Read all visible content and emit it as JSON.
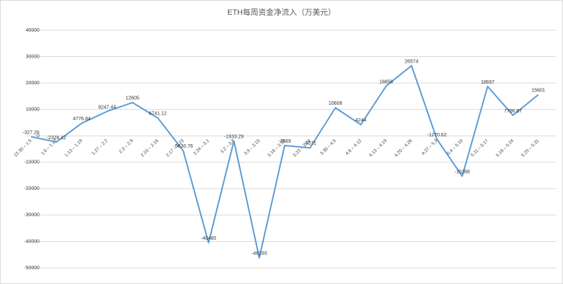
{
  "chart_data": {
    "type": "line",
    "title": "ETH每周资金净流入（万美元）",
    "categories": [
      "12.30 – 1.5",
      "1.6 – 1.12",
      "1.13 – 1.19",
      "1.27 – 2.2",
      "2.3 – 2.9",
      "2.10 – 2.16",
      "2.17 – 2.23",
      "2.24 – 3.1",
      "3.2 – 3.8",
      "3.9 – 3.15",
      "3.16 – 3.22",
      "3.23 – 3.29",
      "3.30 – 4.5",
      "4.6 – 4.12",
      "4.13 – 4.19",
      "4.20 – 4.26",
      "4.27 – 5.3",
      "5.4 – 5.10",
      "5.11 – 5.17",
      "5.18 – 5.24",
      "5.25 – 5.31"
    ],
    "series": [
      {
        "name": "ETH",
        "color": "#5b9bd5",
        "values": [
          -327.26,
          -2328.12,
          4776.84,
          9247.44,
          12605,
          6741.12,
          -5630.76,
          -40480,
          -1933.29,
          -46200,
          -3669,
          -4571,
          10608,
          4244,
          18856,
          26574,
          -1270.62,
          -15288,
          18697,
          7796.87,
          15601
        ]
      }
    ],
    "ylim": [
      -50000,
      40000
    ],
    "yticks": [
      -50000,
      -40000,
      -30000,
      -20000,
      -10000,
      0,
      10000,
      20000,
      30000,
      40000
    ],
    "grid": true
  }
}
